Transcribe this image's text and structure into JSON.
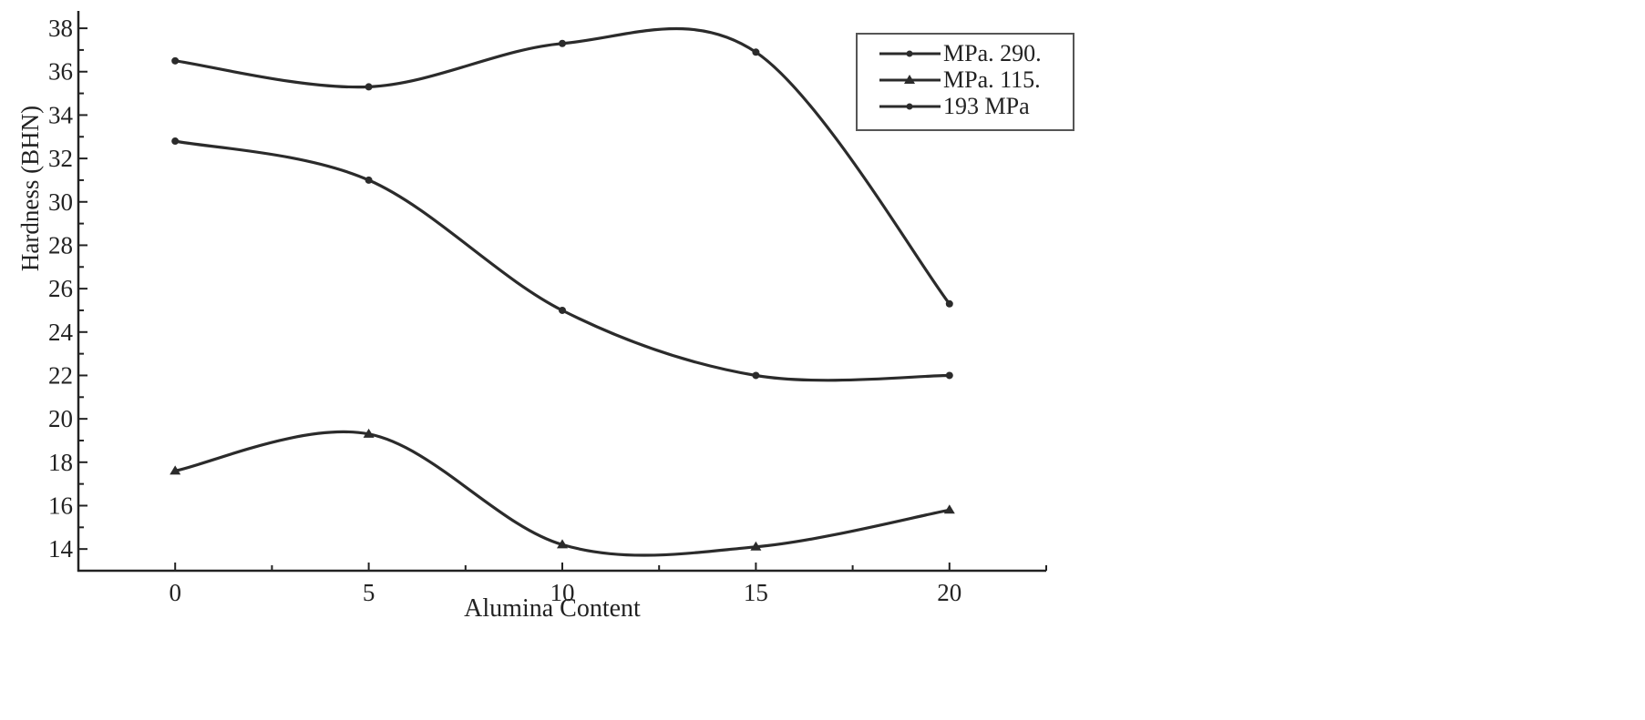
{
  "chart_data": {
    "type": "line",
    "title": "",
    "xlabel": "Alumina Content",
    "ylabel": "Hardness (BHN)",
    "x": [
      0,
      5,
      10,
      15,
      20
    ],
    "xticks": [
      0,
      5,
      10,
      15,
      20
    ],
    "yticks": [
      14,
      16,
      18,
      20,
      22,
      24,
      26,
      28,
      30,
      32,
      34,
      36,
      38
    ],
    "xlim": [
      -2.5,
      22.5
    ],
    "ylim": [
      13,
      38.8
    ],
    "grid": false,
    "smooth": true,
    "legend_position": "top-right",
    "series": [
      {
        "name": "MPa. 290.",
        "marker": "circle",
        "values": [
          36.5,
          35.3,
          37.3,
          36.9,
          25.3
        ]
      },
      {
        "name": "MPa. 115.",
        "marker": "triangle",
        "values": [
          17.6,
          19.3,
          14.2,
          14.1,
          15.8
        ]
      },
      {
        "name": "193 MPa",
        "marker": "circle",
        "values": [
          32.8,
          31.0,
          25.0,
          22.0,
          22.0
        ]
      }
    ],
    "line_color": "#2b2b2b",
    "axis_color": "#222222"
  }
}
